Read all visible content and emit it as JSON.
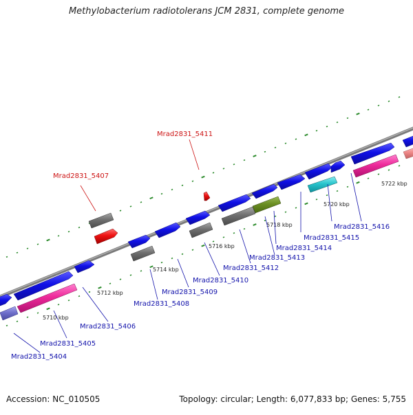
{
  "title": "Methylobacterium radiotolerans JCM 2831, complete genome",
  "footer": {
    "accession": "Accession: NC_010505",
    "topology": "Topology: circular; Length: 6,077,833 bp; Genes: 5,755"
  },
  "colors": {
    "backbone": "#8a8a8a",
    "cds": "#1010e6",
    "pseudo_gray": "#6f6f6f",
    "rna_red": "#ee1111",
    "pink": "#ee2a9a",
    "olive": "#6b8e23",
    "cyan": "#29c4cc",
    "lavender": "#7070cc",
    "salmon": "#f08a8a",
    "ticks": "#2a8a2a",
    "kbp_text": "#222222",
    "label_blue": "#1010aa",
    "label_red": "#cc1111"
  },
  "kbp_ticks": [
    "5710 kbp",
    "5712 kbp",
    "5714 kbp",
    "5716 kbp",
    "5718 kbp",
    "5720 kbp",
    "5722 kbp"
  ],
  "gene_labels": [
    "Mrad2831_5404",
    "Mrad2831_5405",
    "Mrad2831_5406",
    "Mrad2831_5407",
    "Mrad2831_5408",
    "Mrad2831_5409",
    "Mrad2831_5410",
    "Mrad2831_5411",
    "Mrad2831_5412",
    "Mrad2831_5413",
    "Mrad2831_5414",
    "Mrad2831_5415",
    "Mrad2831_5416"
  ]
}
